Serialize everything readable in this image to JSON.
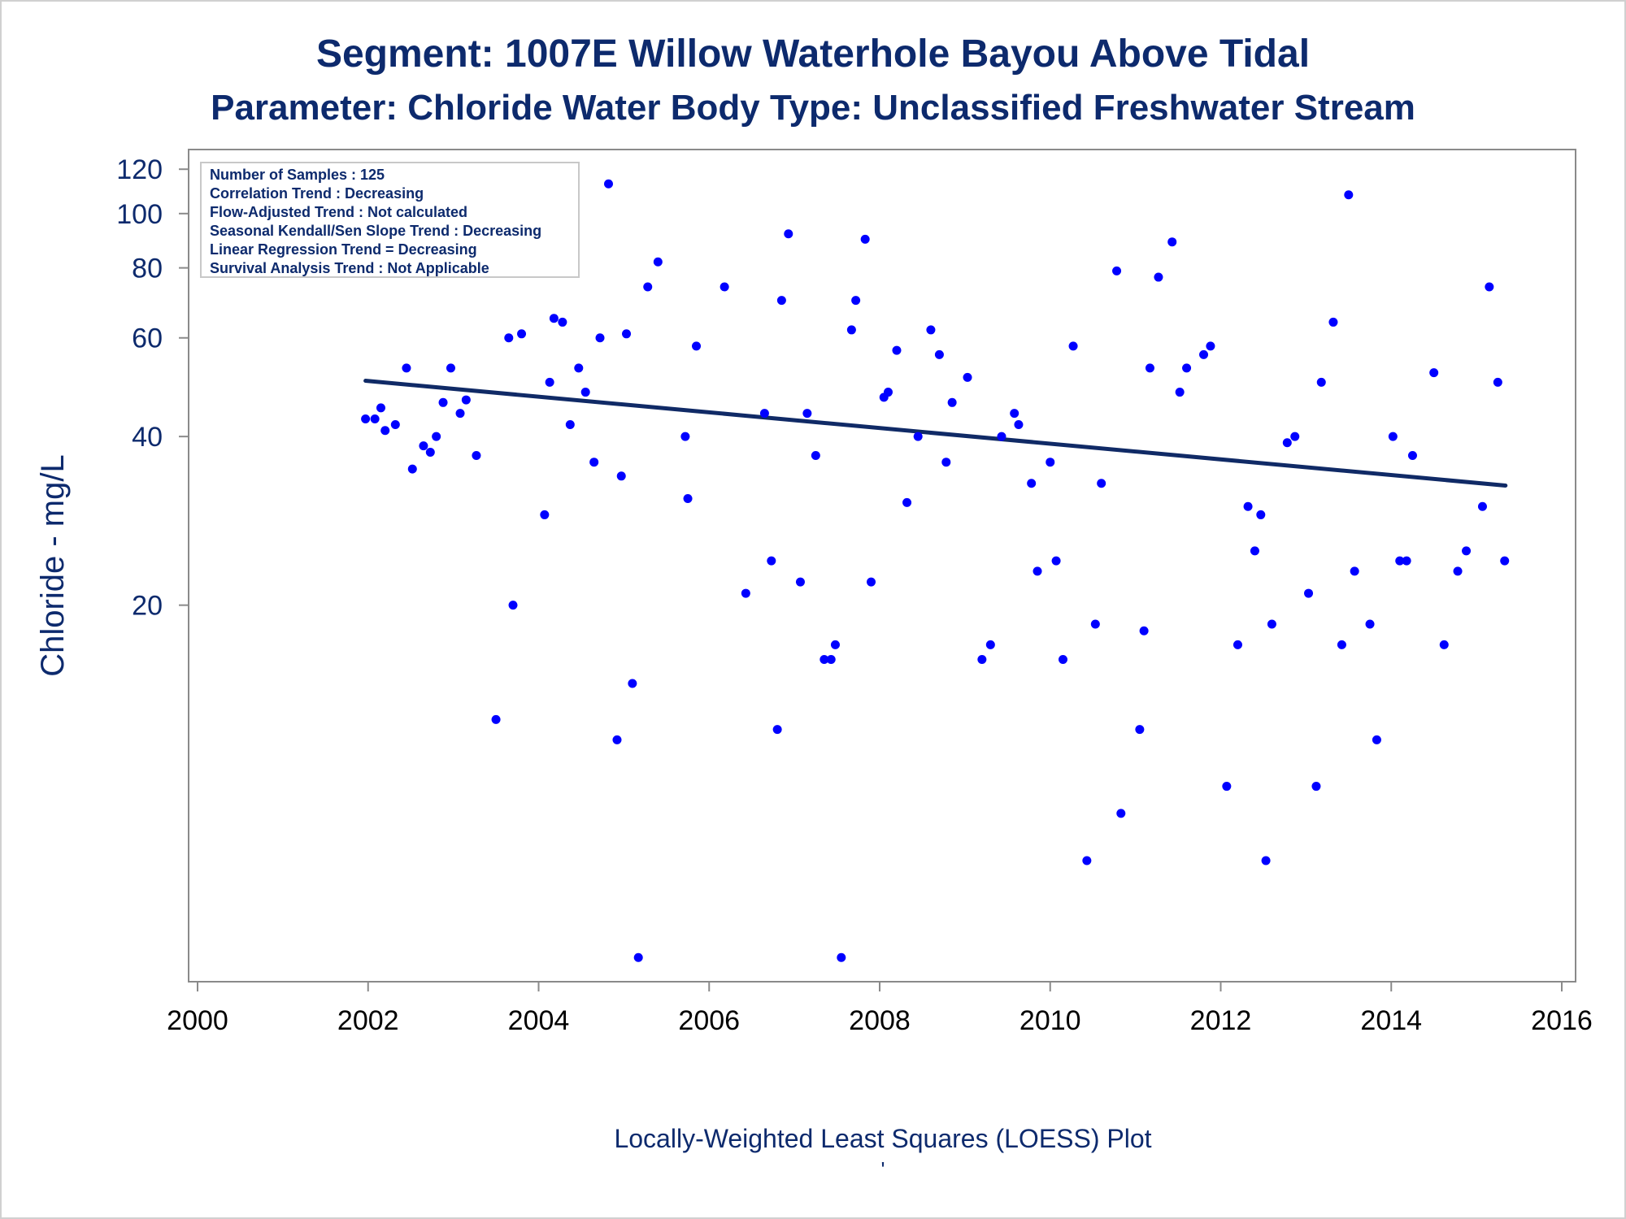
{
  "chart_data": {
    "type": "scatter",
    "title": "Segment: 1007E  Willow Waterhole Bayou Above Tidal",
    "subtitle": "Parameter: Chloride   Water Body Type: Unclassified Freshwater Stream",
    "xlabel": "Locally-Weighted Least Squares (LOESS) Plot",
    "ylabel": "Chloride - mg/L",
    "footnote": "'",
    "y_scale": "log",
    "xlim": [
      2000,
      2016
    ],
    "ylim": [
      4.4,
      125
    ],
    "x_ticks": [
      "2000",
      "2002",
      "2004",
      "2006",
      "2008",
      "2010",
      "2012",
      "2014",
      "2016"
    ],
    "y_ticks": [
      "20",
      "40",
      "60",
      "80",
      "100",
      "120"
    ],
    "legend_placement": "top-left",
    "stats_box": [
      "Number of Samples : 125",
      "Correlation Trend : Decreasing",
      "Flow-Adjusted Trend : Not calculated",
      "Seasonal Kendall/Sen Slope Trend : Decreasing",
      "Linear Regression Trend = Decreasing",
      "Survival Analysis Trend : Not Applicable"
    ],
    "trend_line": {
      "x": [
        2001.97,
        2015.34
      ],
      "y": [
        50.3,
        32.7
      ]
    },
    "points": [
      [
        2001.97,
        43
      ],
      [
        2002.08,
        43
      ],
      [
        2002.15,
        45
      ],
      [
        2002.2,
        41
      ],
      [
        2002.32,
        42
      ],
      [
        2002.35,
        79
      ],
      [
        2002.45,
        53
      ],
      [
        2002.52,
        35
      ],
      [
        2002.65,
        38.5
      ],
      [
        2002.73,
        37.5
      ],
      [
        2002.8,
        40
      ],
      [
        2002.88,
        46
      ],
      [
        2002.97,
        53
      ],
      [
        2003.08,
        44
      ],
      [
        2003.15,
        46.5
      ],
      [
        2003.27,
        37
      ],
      [
        2003.32,
        90
      ],
      [
        2003.47,
        80
      ],
      [
        2003.5,
        12.5
      ],
      [
        2003.65,
        60
      ],
      [
        2003.7,
        20
      ],
      [
        2003.8,
        61
      ],
      [
        2004.07,
        29
      ],
      [
        2004.13,
        50
      ],
      [
        2004.18,
        65
      ],
      [
        2004.28,
        64
      ],
      [
        2004.37,
        42
      ],
      [
        2004.47,
        53
      ],
      [
        2004.55,
        48
      ],
      [
        2004.65,
        36
      ],
      [
        2004.72,
        60
      ],
      [
        2004.82,
        113
      ],
      [
        2004.92,
        11.5
      ],
      [
        2004.97,
        34
      ],
      [
        2005.03,
        61
      ],
      [
        2005.1,
        14.5
      ],
      [
        2005.17,
        4.7
      ],
      [
        2005.28,
        74
      ],
      [
        2005.4,
        82
      ],
      [
        2005.72,
        40
      ],
      [
        2005.75,
        31
      ],
      [
        2005.85,
        58
      ],
      [
        2006.18,
        74
      ],
      [
        2006.43,
        21
      ],
      [
        2006.65,
        44
      ],
      [
        2006.73,
        24
      ],
      [
        2006.8,
        12
      ],
      [
        2006.85,
        70
      ],
      [
        2006.93,
        92
      ],
      [
        2007.07,
        22
      ],
      [
        2007.15,
        44
      ],
      [
        2007.25,
        37
      ],
      [
        2007.35,
        16
      ],
      [
        2007.43,
        16
      ],
      [
        2007.48,
        17
      ],
      [
        2007.55,
        4.7
      ],
      [
        2007.67,
        62
      ],
      [
        2007.72,
        70
      ],
      [
        2007.83,
        90
      ],
      [
        2007.9,
        22
      ],
      [
        2008.05,
        47
      ],
      [
        2008.1,
        48
      ],
      [
        2008.2,
        57
      ],
      [
        2008.32,
        30.5
      ],
      [
        2008.45,
        40
      ],
      [
        2008.6,
        62
      ],
      [
        2008.7,
        56
      ],
      [
        2008.78,
        36
      ],
      [
        2008.85,
        46
      ],
      [
        2009.03,
        51
      ],
      [
        2009.2,
        16
      ],
      [
        2009.3,
        17
      ],
      [
        2009.43,
        40
      ],
      [
        2009.58,
        44
      ],
      [
        2009.63,
        42
      ],
      [
        2009.78,
        33
      ],
      [
        2009.85,
        23
      ],
      [
        2010.0,
        36
      ],
      [
        2010.07,
        24
      ],
      [
        2010.15,
        16
      ],
      [
        2010.27,
        58
      ],
      [
        2010.43,
        7
      ],
      [
        2010.53,
        18.5
      ],
      [
        2010.6,
        33
      ],
      [
        2010.78,
        79
      ],
      [
        2010.83,
        8.5
      ],
      [
        2011.05,
        12
      ],
      [
        2011.1,
        18
      ],
      [
        2011.17,
        53
      ],
      [
        2011.27,
        77
      ],
      [
        2011.43,
        89
      ],
      [
        2011.52,
        48
      ],
      [
        2011.6,
        53
      ],
      [
        2011.8,
        56
      ],
      [
        2011.88,
        58
      ],
      [
        2012.07,
        9.5
      ],
      [
        2012.2,
        17
      ],
      [
        2012.32,
        30
      ],
      [
        2012.4,
        25
      ],
      [
        2012.47,
        29
      ],
      [
        2012.53,
        7
      ],
      [
        2012.6,
        18.5
      ],
      [
        2012.78,
        39
      ],
      [
        2012.87,
        40
      ],
      [
        2013.03,
        21
      ],
      [
        2013.12,
        9.5
      ],
      [
        2013.18,
        50
      ],
      [
        2013.32,
        64
      ],
      [
        2013.42,
        17
      ],
      [
        2013.5,
        108
      ],
      [
        2013.57,
        23
      ],
      [
        2013.75,
        18.5
      ],
      [
        2013.83,
        11.5
      ],
      [
        2014.02,
        40
      ],
      [
        2014.1,
        24
      ],
      [
        2014.18,
        24
      ],
      [
        2014.25,
        37
      ],
      [
        2014.5,
        52
      ],
      [
        2014.62,
        17
      ],
      [
        2014.78,
        23
      ],
      [
        2014.88,
        25
      ],
      [
        2015.07,
        30
      ],
      [
        2015.15,
        74
      ],
      [
        2015.25,
        50
      ],
      [
        2015.33,
        24
      ]
    ]
  },
  "colors": {
    "text": "#0d2a6d",
    "point": "#0000ff",
    "trend": "#102a66",
    "axis": "#8a8a8a",
    "legend_border": "#c8c8c8"
  }
}
